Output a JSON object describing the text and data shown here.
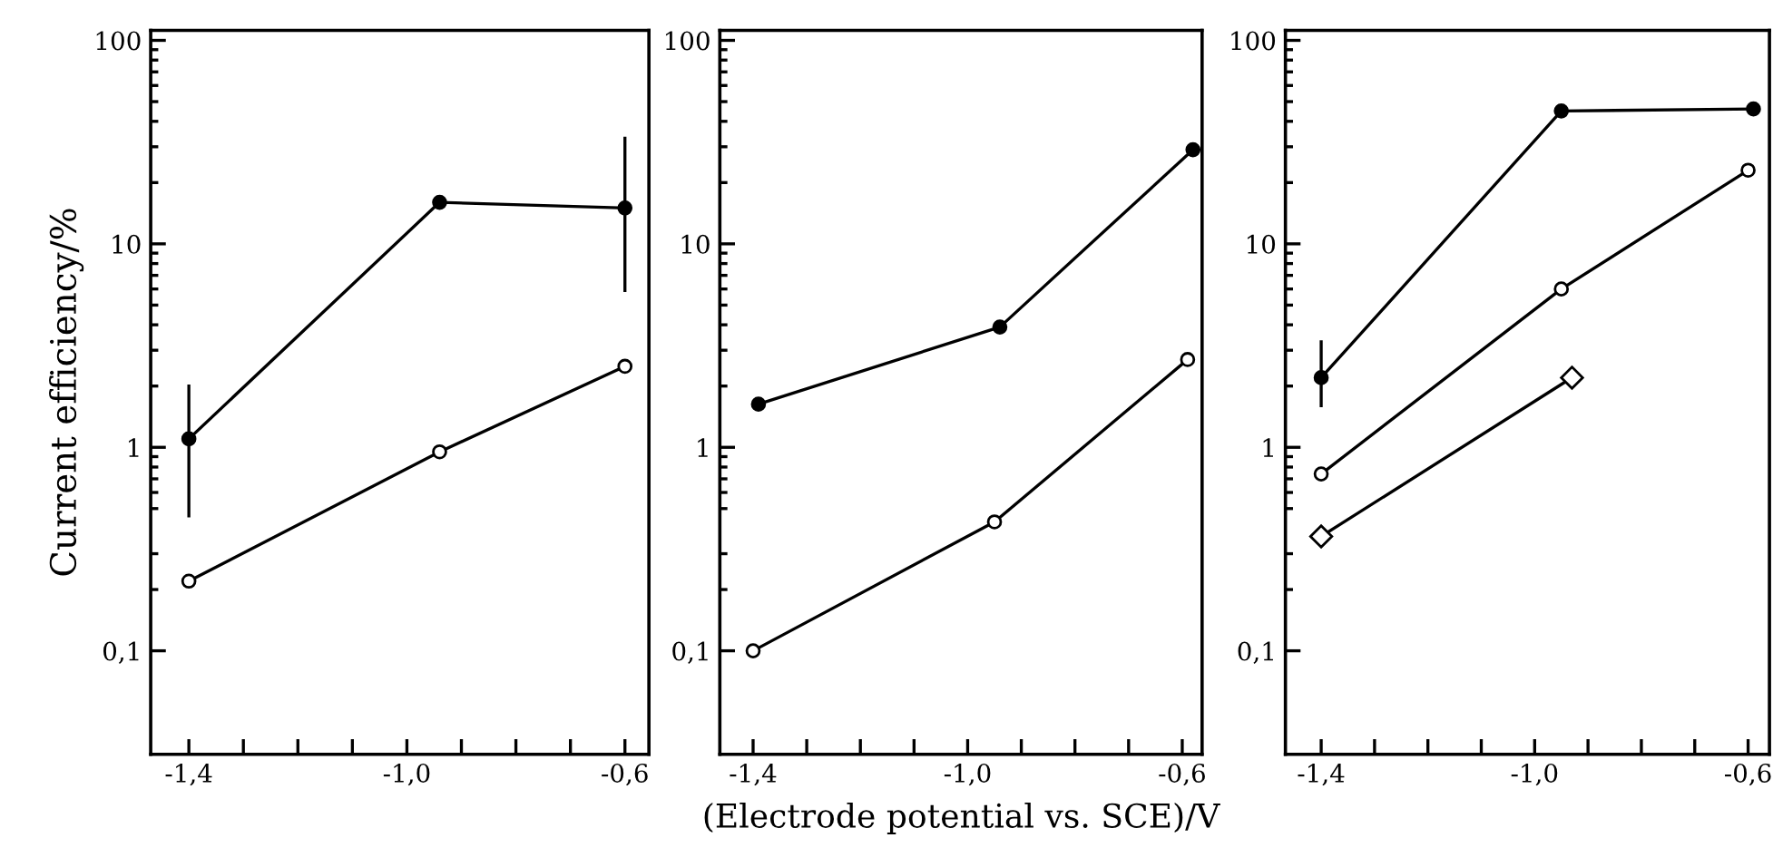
{
  "chart_data": [
    {
      "type": "line",
      "ylabel": "Current efficiency/%",
      "log": "y",
      "xlim": [
        -1.47,
        -0.556
      ],
      "ylim": [
        0.031,
        112
      ],
      "xticks": [
        {
          "value": -1.4,
          "label": "-1,4"
        },
        {
          "value": -1.3,
          "label": null
        },
        {
          "value": -1.2,
          "label": null
        },
        {
          "value": -1.1,
          "label": null
        },
        {
          "value": -1.0,
          "label": "-1,0"
        },
        {
          "value": -0.9,
          "label": null
        },
        {
          "value": -0.8,
          "label": null
        },
        {
          "value": -0.7,
          "label": null
        },
        {
          "value": -0.6,
          "label": "-0,6"
        }
      ],
      "yticks": [
        {
          "value": 0.1,
          "label": "0,1"
        },
        1,
        10,
        100,
        {
          "value": 2,
          "label": null
        },
        {
          "value": 3,
          "label": null
        },
        {
          "value": 4,
          "label": null
        },
        {
          "value": 5,
          "label": null
        },
        {
          "value": 6,
          "label": null
        },
        {
          "value": 7,
          "label": null
        },
        {
          "value": 8,
          "label": null
        },
        {
          "value": 9,
          "label": null
        },
        {
          "value": 20,
          "label": null
        },
        {
          "value": 30,
          "label": null
        },
        {
          "value": 40,
          "label": null
        },
        {
          "value": 50,
          "label": null
        },
        {
          "value": 60,
          "label": null
        },
        {
          "value": 70,
          "label": null
        },
        {
          "value": 80,
          "label": null
        },
        {
          "value": 90,
          "label": null
        },
        {
          "value": 0.2,
          "label": null
        },
        {
          "value": 0.3,
          "label": null
        },
        {
          "value": 0.5,
          "label": null
        },
        {
          "value": 0.6,
          "label": null
        },
        {
          "value": 0.7,
          "label": null
        },
        {
          "value": 0.8,
          "label": null
        },
        {
          "value": 0.9,
          "label": null
        }
      ],
      "grid": false,
      "line_style": "solid",
      "series": [
        {
          "color": "#000000",
          "marker": "circle",
          "x": [
            -1.4,
            -0.94,
            -0.6
          ],
          "values": [
            1.1,
            16,
            15
          ],
          "errors": [
            [
              0.46,
              2.0
            ],
            null,
            [
              5.9,
              33
            ]
          ]
        },
        {
          "color": "#ffffff",
          "marker": "circle",
          "x": [
            -1.4,
            -0.94,
            -0.6
          ],
          "values": [
            0.22,
            0.95,
            2.5
          ]
        }
      ]
    },
    {
      "type": "line",
      "xlabel": "(Electrode potential vs. SCE)/V",
      "log": "y",
      "xlim": [
        -1.462,
        -0.563
      ],
      "ylim": [
        0.031,
        112
      ],
      "xticks": [
        {
          "value": -1.4,
          "label": "-1,4"
        },
        {
          "value": -1.3,
          "label": null
        },
        {
          "value": -1.2,
          "label": null
        },
        {
          "value": -1.1,
          "label": null
        },
        {
          "value": -1.0,
          "label": "-1,0"
        },
        {
          "value": -0.9,
          "label": null
        },
        {
          "value": -0.8,
          "label": null
        },
        {
          "value": -0.7,
          "label": null
        },
        {
          "value": -0.6,
          "label": "-0,6"
        }
      ],
      "yticks": [
        {
          "value": 0.1,
          "label": "0,1"
        },
        1,
        10,
        100,
        {
          "value": 2,
          "label": null
        },
        {
          "value": 3,
          "label": null
        },
        {
          "value": 4,
          "label": null
        },
        {
          "value": 5,
          "label": null
        },
        {
          "value": 6,
          "label": null
        },
        {
          "value": 7,
          "label": null
        },
        {
          "value": 8,
          "label": null
        },
        {
          "value": 9,
          "label": null
        },
        {
          "value": 20,
          "label": null
        },
        {
          "value": 30,
          "label": null
        },
        {
          "value": 40,
          "label": null
        },
        {
          "value": 50,
          "label": null
        },
        {
          "value": 60,
          "label": null
        },
        {
          "value": 70,
          "label": null
        },
        {
          "value": 80,
          "label": null
        },
        {
          "value": 90,
          "label": null
        },
        {
          "value": 0.2,
          "label": null
        },
        {
          "value": 0.3,
          "label": null
        },
        {
          "value": 0.5,
          "label": null
        },
        {
          "value": 0.6,
          "label": null
        },
        {
          "value": 0.7,
          "label": null
        },
        {
          "value": 0.8,
          "label": null
        },
        {
          "value": 0.9,
          "label": null
        }
      ],
      "grid": false,
      "line_style": "solid",
      "series": [
        {
          "color": "#000000",
          "marker": "circle",
          "x": [
            -1.39,
            -0.94,
            -0.58
          ],
          "values": [
            1.63,
            3.9,
            29
          ]
        },
        {
          "color": "#ffffff",
          "marker": "circle",
          "x": [
            -1.4,
            -0.95,
            -0.59
          ],
          "values": [
            0.1,
            0.43,
            2.7
          ]
        }
      ]
    },
    {
      "type": "line",
      "log": "y",
      "xlim": [
        -1.467,
        -0.56
      ],
      "ylim": [
        0.031,
        112
      ],
      "xticks": [
        {
          "value": -1.4,
          "label": "-1,4"
        },
        {
          "value": -1.3,
          "label": null
        },
        {
          "value": -1.2,
          "label": null
        },
        {
          "value": -1.1,
          "label": null
        },
        {
          "value": -1.0,
          "label": "-1,0"
        },
        {
          "value": -0.9,
          "label": null
        },
        {
          "value": -0.8,
          "label": null
        },
        {
          "value": -0.7,
          "label": null
        },
        {
          "value": -0.6,
          "label": "-0,6"
        }
      ],
      "yticks": [
        {
          "value": 0.1,
          "label": "0,1"
        },
        1,
        10,
        100,
        {
          "value": 2,
          "label": null
        },
        {
          "value": 3,
          "label": null
        },
        {
          "value": 4,
          "label": null
        },
        {
          "value": 5,
          "label": null
        },
        {
          "value": 6,
          "label": null
        },
        {
          "value": 7,
          "label": null
        },
        {
          "value": 8,
          "label": null
        },
        {
          "value": 9,
          "label": null
        },
        {
          "value": 20,
          "label": null
        },
        {
          "value": 30,
          "label": null
        },
        {
          "value": 40,
          "label": null
        },
        {
          "value": 50,
          "label": null
        },
        {
          "value": 60,
          "label": null
        },
        {
          "value": 70,
          "label": null
        },
        {
          "value": 80,
          "label": null
        },
        {
          "value": 90,
          "label": null
        },
        {
          "value": 0.2,
          "label": null
        },
        {
          "value": 0.3,
          "label": null
        },
        {
          "value": 0.5,
          "label": null
        },
        {
          "value": 0.6,
          "label": null
        },
        {
          "value": 0.7,
          "label": null
        },
        {
          "value": 0.8,
          "label": null
        },
        {
          "value": 0.9,
          "label": null
        }
      ],
      "grid": false,
      "line_style": "solid",
      "series": [
        {
          "color": "#000000",
          "marker": "circle",
          "x": [
            -1.4,
            -0.95,
            -0.59
          ],
          "values": [
            2.2,
            45,
            46
          ],
          "errors": [
            [
              1.6,
              3.3
            ],
            null,
            null
          ]
        },
        {
          "color": "#ffffff",
          "marker": "circle",
          "x": [
            -1.4,
            -0.95,
            -0.6
          ],
          "values": [
            0.74,
            6.0,
            23
          ]
        },
        {
          "color": "#ffffff",
          "marker": "diamond",
          "x": [
            -1.4,
            -0.93
          ],
          "values": [
            0.365,
            2.2
          ]
        }
      ]
    }
  ]
}
